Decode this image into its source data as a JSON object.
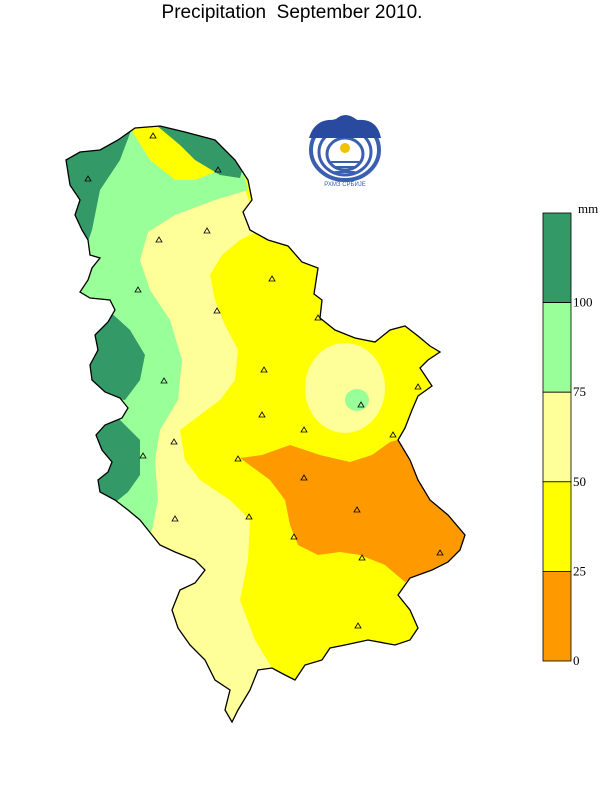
{
  "title": "Precipitation  September 2010.",
  "logo_text": "РХМЗ СРБИЈЕ",
  "legend": {
    "unit": "mm",
    "classes": [
      {
        "from": 100,
        "to": null,
        "color": "#339966"
      },
      {
        "from": 75,
        "to": 100,
        "color": "#99ff99"
      },
      {
        "from": 50,
        "to": 75,
        "color": "#ffff99"
      },
      {
        "from": 25,
        "to": 50,
        "color": "#ffff00"
      },
      {
        "from": 0,
        "to": 25,
        "color": "#ff9900"
      }
    ],
    "tick_labels": [
      "100",
      "75",
      "50",
      "25",
      "0"
    ]
  },
  "colors": {
    "gt100": "#339966",
    "c75_100": "#99ff99",
    "c50_75": "#ffff99",
    "c25_50": "#ffff00",
    "c0_25": "#ff9900",
    "border": "#000000",
    "station": "#000000"
  },
  "stations_count": 28
}
